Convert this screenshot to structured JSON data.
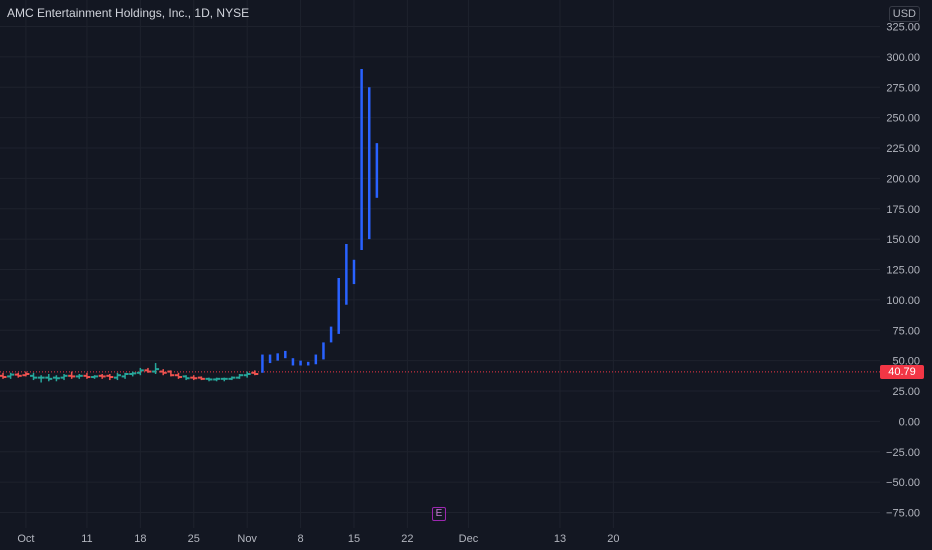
{
  "header": {
    "title": "AMC Entertainment Holdings, Inc., 1D, NYSE",
    "currency": "USD"
  },
  "last_price": {
    "label": "40.79",
    "value": 40.79,
    "color": "#f23645"
  },
  "earnings_marker": {
    "label": "E",
    "color": "#9c27b0"
  },
  "colors": {
    "background": "#131722",
    "grid": "#1e222d",
    "up_bar": "#26a69a",
    "down_bar": "#ef5350",
    "highlight_bar": "#2962ff",
    "axis_text": "#b2b5be"
  },
  "chart_data": {
    "type": "ohlc",
    "title": "AMC Entertainment Holdings, Inc., 1D, NYSE",
    "xlabel": "",
    "ylabel": "",
    "currency": "USD",
    "y_ticks": [
      325,
      300,
      275,
      250,
      225,
      200,
      175,
      150,
      125,
      100,
      75,
      50,
      25,
      0,
      -25,
      -50,
      -75
    ],
    "y_tick_labels": [
      "325.00",
      "300.00",
      "275.00",
      "250.00",
      "225.00",
      "200.00",
      "175.00",
      "150.00",
      "125.00",
      "100.00",
      "75.00",
      "50.00",
      "25.00",
      "0.00",
      "−25.00",
      "−50.00",
      "−75.00"
    ],
    "ylim": [
      -85,
      338
    ],
    "x_ticks": [
      {
        "label": "Oct",
        "day": 3
      },
      {
        "label": "11",
        "day": 11
      },
      {
        "label": "18",
        "day": 18
      },
      {
        "label": "25",
        "day": 25
      },
      {
        "label": "Nov",
        "day": 32
      },
      {
        "label": "8",
        "day": 39
      },
      {
        "label": "15",
        "day": 46
      },
      {
        "label": "22",
        "day": 53
      },
      {
        "label": "Dec",
        "day": 61
      },
      {
        "label": "13",
        "day": 73
      },
      {
        "label": "20",
        "day": 80
      }
    ],
    "xlim": [
      -0.3,
      84
    ],
    "grid": true,
    "last_price_line": 40.79,
    "bars": [
      {
        "day": 0,
        "open": 37.5,
        "high": 40,
        "low": 35,
        "close": 36.5,
        "color": "down"
      },
      {
        "day": 1,
        "open": 37,
        "high": 40,
        "low": 35,
        "close": 38.5,
        "color": "up"
      },
      {
        "day": 2,
        "open": 38.5,
        "high": 40,
        "low": 36,
        "close": 37.5,
        "color": "down"
      },
      {
        "day": 3,
        "open": 38,
        "high": 41,
        "low": 37,
        "close": 39,
        "color": "down"
      },
      {
        "day": 4,
        "open": 37.5,
        "high": 40,
        "low": 34,
        "close": 36,
        "color": "up"
      },
      {
        "day": 5,
        "open": 36,
        "high": 38,
        "low": 32,
        "close": 36,
        "color": "up"
      },
      {
        "day": 6,
        "open": 36,
        "high": 39,
        "low": 33,
        "close": 35,
        "color": "up"
      },
      {
        "day": 7,
        "open": 36,
        "high": 38,
        "low": 33,
        "close": 35.5,
        "color": "up"
      },
      {
        "day": 8,
        "open": 36,
        "high": 39,
        "low": 34,
        "close": 37.5,
        "color": "up"
      },
      {
        "day": 9,
        "open": 37.5,
        "high": 41,
        "low": 35,
        "close": 37,
        "color": "down"
      },
      {
        "day": 10,
        "open": 37,
        "high": 39,
        "low": 35,
        "close": 37.5,
        "color": "up"
      },
      {
        "day": 11,
        "open": 37.5,
        "high": 40,
        "low": 35,
        "close": 36.5,
        "color": "down"
      },
      {
        "day": 12,
        "open": 36.5,
        "high": 38,
        "low": 35,
        "close": 37,
        "color": "up"
      },
      {
        "day": 13,
        "open": 37.5,
        "high": 39,
        "low": 35,
        "close": 37,
        "color": "down"
      },
      {
        "day": 14,
        "open": 37.5,
        "high": 39,
        "low": 34,
        "close": 36.5,
        "color": "down"
      },
      {
        "day": 15,
        "open": 36,
        "high": 40,
        "low": 34,
        "close": 38,
        "color": "up"
      },
      {
        "day": 16,
        "open": 37,
        "high": 40,
        "low": 35,
        "close": 39,
        "color": "up"
      },
      {
        "day": 17,
        "open": 39,
        "high": 41,
        "low": 37,
        "close": 39.5,
        "color": "up"
      },
      {
        "day": 18,
        "open": 40,
        "high": 44,
        "low": 38,
        "close": 42,
        "color": "up"
      },
      {
        "day": 19,
        "open": 42,
        "high": 44,
        "low": 40,
        "close": 41,
        "color": "down"
      },
      {
        "day": 20,
        "open": 41,
        "high": 48,
        "low": 39,
        "close": 43,
        "color": "up"
      },
      {
        "day": 21,
        "open": 41,
        "high": 43,
        "low": 38,
        "close": 40,
        "color": "down"
      },
      {
        "day": 22,
        "open": 41,
        "high": 42,
        "low": 37,
        "close": 38,
        "color": "down"
      },
      {
        "day": 23,
        "open": 38,
        "high": 40,
        "low": 35,
        "close": 36.5,
        "color": "down"
      },
      {
        "day": 24,
        "open": 37,
        "high": 38,
        "low": 34,
        "close": 35.5,
        "color": "up"
      },
      {
        "day": 25,
        "open": 36,
        "high": 38,
        "low": 34,
        "close": 35.5,
        "color": "down"
      },
      {
        "day": 26,
        "open": 36,
        "high": 37,
        "low": 34,
        "close": 35,
        "color": "down"
      },
      {
        "day": 27,
        "open": 35,
        "high": 36,
        "low": 33,
        "close": 34.5,
        "color": "up"
      },
      {
        "day": 28,
        "open": 34.5,
        "high": 36,
        "low": 33,
        "close": 35,
        "color": "up"
      },
      {
        "day": 29,
        "open": 35,
        "high": 36,
        "low": 33,
        "close": 35,
        "color": "up"
      },
      {
        "day": 30,
        "open": 35,
        "high": 37,
        "low": 34,
        "close": 36,
        "color": "up"
      },
      {
        "day": 31,
        "open": 36,
        "high": 39,
        "low": 35,
        "close": 38,
        "color": "up"
      },
      {
        "day": 32,
        "open": 38,
        "high": 41,
        "low": 36,
        "close": 39,
        "color": "up"
      },
      {
        "day": 33,
        "open": 40,
        "high": 42,
        "low": 38,
        "close": 39,
        "color": "down"
      },
      {
        "day": 34,
        "open": 41,
        "high": 55,
        "low": 40,
        "close": 52,
        "color": "highlight"
      },
      {
        "day": 35,
        "open": 51,
        "high": 55,
        "low": 48,
        "close": 52,
        "color": "highlight"
      },
      {
        "day": 36,
        "open": 52,
        "high": 56,
        "low": 50,
        "close": 53,
        "color": "highlight"
      },
      {
        "day": 37,
        "open": 53,
        "high": 58,
        "low": 52,
        "close": 55,
        "color": "highlight"
      },
      {
        "day": 38,
        "open": 50,
        "high": 52,
        "low": 46,
        "close": 48,
        "color": "highlight"
      },
      {
        "day": 39,
        "open": 48,
        "high": 50,
        "low": 46,
        "close": 48,
        "color": "highlight"
      },
      {
        "day": 40,
        "open": 48,
        "high": 49,
        "low": 46,
        "close": 47,
        "color": "highlight"
      },
      {
        "day": 41,
        "open": 48,
        "high": 55,
        "low": 47,
        "close": 53,
        "color": "highlight"
      },
      {
        "day": 42,
        "open": 52,
        "high": 65,
        "low": 51,
        "close": 63,
        "color": "highlight"
      },
      {
        "day": 43,
        "open": 66,
        "high": 78,
        "low": 65,
        "close": 75,
        "color": "highlight"
      },
      {
        "day": 44,
        "open": 75,
        "high": 118,
        "low": 72,
        "close": 112,
        "color": "highlight"
      },
      {
        "day": 45,
        "open": 100,
        "high": 146,
        "low": 96,
        "close": 140,
        "color": "highlight"
      },
      {
        "day": 46,
        "open": 120,
        "high": 133,
        "low": 113,
        "close": 128,
        "color": "highlight"
      },
      {
        "day": 47,
        "open": 150,
        "high": 290,
        "low": 141,
        "close": 280,
        "color": "highlight"
      },
      {
        "day": 48,
        "open": 260,
        "high": 275,
        "low": 150,
        "close": 160,
        "color": "highlight"
      },
      {
        "day": 49,
        "open": 190,
        "high": 229,
        "low": 184,
        "close": 220,
        "color": "highlight"
      }
    ]
  }
}
